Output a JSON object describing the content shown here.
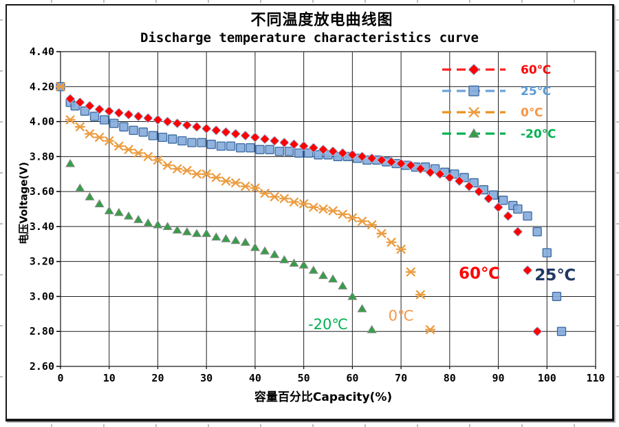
{
  "chart_data": {
    "type": "scatter",
    "title": "不同温度放电曲线图",
    "subtitle": "Discharge temperature characteristics curve",
    "xlabel": "容量百分比Capacity(%)",
    "ylabel": "电压Voltage(V)",
    "xlim": [
      0,
      110
    ],
    "ylim": [
      2.6,
      4.4
    ],
    "xticks": [
      0,
      10,
      20,
      30,
      40,
      50,
      60,
      70,
      80,
      90,
      100,
      110
    ],
    "yticks": [
      "4.40",
      "4.20",
      "4.00",
      "3.80",
      "3.60",
      "3.40",
      "3.20",
      "3.00",
      "2.80",
      "2.60"
    ],
    "grid": true,
    "legend_position": "inside-top-right",
    "series": [
      {
        "name": "60℃",
        "marker": "diamond",
        "color": "#FE0000",
        "marker_stroke": "#9DC3E6",
        "line_color": "#FF1F1F",
        "label_color": "#FF0000",
        "x": [
          2,
          4,
          6,
          8,
          10,
          12,
          14,
          16,
          18,
          20,
          22,
          24,
          26,
          28,
          30,
          32,
          34,
          36,
          38,
          40,
          42,
          44,
          46,
          48,
          50,
          52,
          54,
          56,
          58,
          60,
          62,
          64,
          66,
          68,
          70,
          72,
          74,
          76,
          78,
          80,
          82,
          84,
          86,
          88,
          90,
          92,
          94,
          96,
          98
        ],
        "y": [
          4.13,
          4.11,
          4.09,
          4.07,
          4.06,
          4.05,
          4.04,
          4.03,
          4.02,
          4.01,
          4.0,
          3.99,
          3.98,
          3.97,
          3.96,
          3.95,
          3.94,
          3.93,
          3.92,
          3.91,
          3.9,
          3.89,
          3.88,
          3.87,
          3.86,
          3.85,
          3.84,
          3.83,
          3.82,
          3.81,
          3.8,
          3.79,
          3.78,
          3.77,
          3.76,
          3.75,
          3.73,
          3.71,
          3.7,
          3.68,
          3.66,
          3.63,
          3.6,
          3.56,
          3.51,
          3.46,
          3.37,
          3.15,
          2.8
        ]
      },
      {
        "name": "25℃",
        "marker": "square",
        "color": "#84ABDB",
        "marker_stroke": "#39679E",
        "line_color": "#6CA0DC",
        "label_color": "#5B9BD5",
        "x": [
          0,
          2,
          3,
          5,
          7,
          9,
          11,
          13,
          15,
          17,
          19,
          21,
          23,
          25,
          27,
          29,
          31,
          33,
          35,
          37,
          39,
          41,
          43,
          45,
          47,
          49,
          51,
          53,
          55,
          57,
          59,
          61,
          63,
          65,
          67,
          69,
          71,
          73,
          75,
          77,
          79,
          81,
          83,
          85,
          87,
          89,
          91,
          93,
          94,
          96,
          98,
          100,
          102,
          103
        ],
        "y": [
          4.2,
          4.11,
          4.09,
          4.06,
          4.03,
          4.01,
          3.99,
          3.97,
          3.95,
          3.94,
          3.92,
          3.91,
          3.9,
          3.89,
          3.88,
          3.88,
          3.87,
          3.86,
          3.86,
          3.85,
          3.85,
          3.84,
          3.84,
          3.83,
          3.83,
          3.82,
          3.82,
          3.81,
          3.81,
          3.8,
          3.8,
          3.79,
          3.78,
          3.78,
          3.77,
          3.76,
          3.75,
          3.74,
          3.74,
          3.73,
          3.71,
          3.7,
          3.68,
          3.65,
          3.61,
          3.58,
          3.55,
          3.52,
          3.5,
          3.46,
          3.37,
          3.25,
          3.0,
          2.8
        ]
      },
      {
        "name": "0℃",
        "marker": "asterisk",
        "color": "#EC9C40",
        "marker_stroke": "#EC9C40",
        "line_color": "#E8921E",
        "label_color": "#F79646",
        "x": [
          0,
          2,
          4,
          6,
          8,
          10,
          12,
          14,
          16,
          18,
          20,
          22,
          24,
          26,
          28,
          30,
          32,
          34,
          36,
          38,
          40,
          42,
          44,
          46,
          48,
          50,
          52,
          54,
          56,
          58,
          60,
          62,
          64,
          66,
          68,
          70,
          72,
          74,
          76
        ],
        "y": [
          4.2,
          4.01,
          3.97,
          3.93,
          3.91,
          3.89,
          3.86,
          3.84,
          3.82,
          3.8,
          3.78,
          3.75,
          3.73,
          3.72,
          3.7,
          3.7,
          3.68,
          3.66,
          3.65,
          3.63,
          3.62,
          3.59,
          3.57,
          3.56,
          3.54,
          3.53,
          3.51,
          3.5,
          3.49,
          3.47,
          3.45,
          3.43,
          3.41,
          3.36,
          3.31,
          3.27,
          3.14,
          3.01,
          2.81
        ]
      },
      {
        "name": "-20℃",
        "marker": "triangle",
        "color": "#359E47",
        "marker_stroke": "#8A8A8A",
        "line_color": "#00B050",
        "label_color": "#00B050",
        "x": [
          2,
          4,
          6,
          8,
          10,
          12,
          14,
          16,
          18,
          20,
          22,
          24,
          26,
          28,
          30,
          32,
          34,
          36,
          38,
          40,
          42,
          44,
          46,
          48,
          50,
          52,
          54,
          56,
          58,
          60,
          62,
          64
        ],
        "y": [
          3.76,
          3.62,
          3.57,
          3.53,
          3.49,
          3.48,
          3.46,
          3.44,
          3.42,
          3.41,
          3.4,
          3.38,
          3.37,
          3.36,
          3.36,
          3.34,
          3.33,
          3.32,
          3.31,
          3.28,
          3.26,
          3.24,
          3.21,
          3.19,
          3.18,
          3.15,
          3.12,
          3.1,
          3.06,
          3.0,
          2.93,
          2.81
        ]
      }
    ],
    "annotations": [
      {
        "text": "60℃",
        "color": "#FF0000",
        "x": 86.1,
        "y": 3.13,
        "size": 23,
        "weight": "bold"
      },
      {
        "text": "25℃",
        "color": "#1F3864",
        "x": 101.7,
        "y": 3.12,
        "size": 23,
        "weight": "bold"
      },
      {
        "text": "0℃",
        "color": "#F79646",
        "x": 70.0,
        "y": 2.89,
        "size": 21,
        "weight": "normal"
      },
      {
        "text": "-20℃",
        "color": "#00B050",
        "x": 55.0,
        "y": 2.84,
        "size": 21,
        "weight": "normal"
      }
    ]
  }
}
